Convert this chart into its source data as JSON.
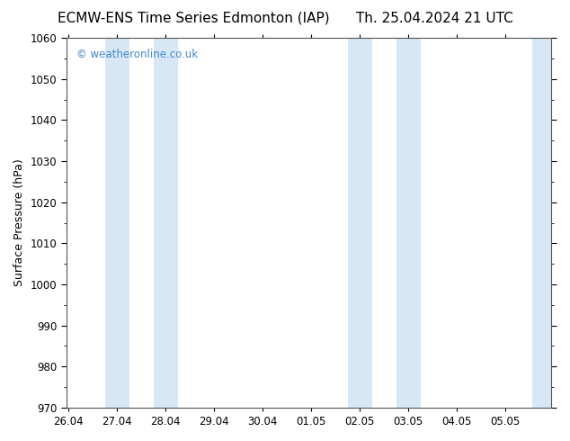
{
  "title_left": "ECMW-ENS Time Series Edmonton (IAP)",
  "title_right": "Th. 25.04.2024 21 UTC",
  "ylabel": "Surface Pressure (hPa)",
  "ylim": [
    970,
    1060
  ],
  "yticks": [
    970,
    980,
    990,
    1000,
    1010,
    1020,
    1030,
    1040,
    1050,
    1060
  ],
  "xtick_labels": [
    "26.04",
    "27.04",
    "28.04",
    "29.04",
    "30.04",
    "01.05",
    "02.05",
    "03.05",
    "04.05",
    "05.05"
  ],
  "xtick_positions": [
    0,
    1,
    2,
    3,
    4,
    5,
    6,
    7,
    8,
    9
  ],
  "xlim": [
    -0.05,
    9.95
  ],
  "shaded_bands": [
    {
      "x_start": 0.75,
      "x_end": 1.25,
      "color": "#d6e8f5"
    },
    {
      "x_start": 1.75,
      "x_end": 2.25,
      "color": "#d6e8f5"
    },
    {
      "x_start": 5.75,
      "x_end": 6.25,
      "color": "#d6e8f5"
    },
    {
      "x_start": 6.75,
      "x_end": 7.25,
      "color": "#d6e8f5"
    },
    {
      "x_start": 9.55,
      "x_end": 10.0,
      "color": "#d6e8f5"
    }
  ],
  "watermark_text": "© weatheronline.co.uk",
  "watermark_color": "#4488cc",
  "background_color": "#ffffff",
  "border_color": "#555555",
  "title_fontsize": 11,
  "label_fontsize": 9,
  "tick_fontsize": 8.5
}
